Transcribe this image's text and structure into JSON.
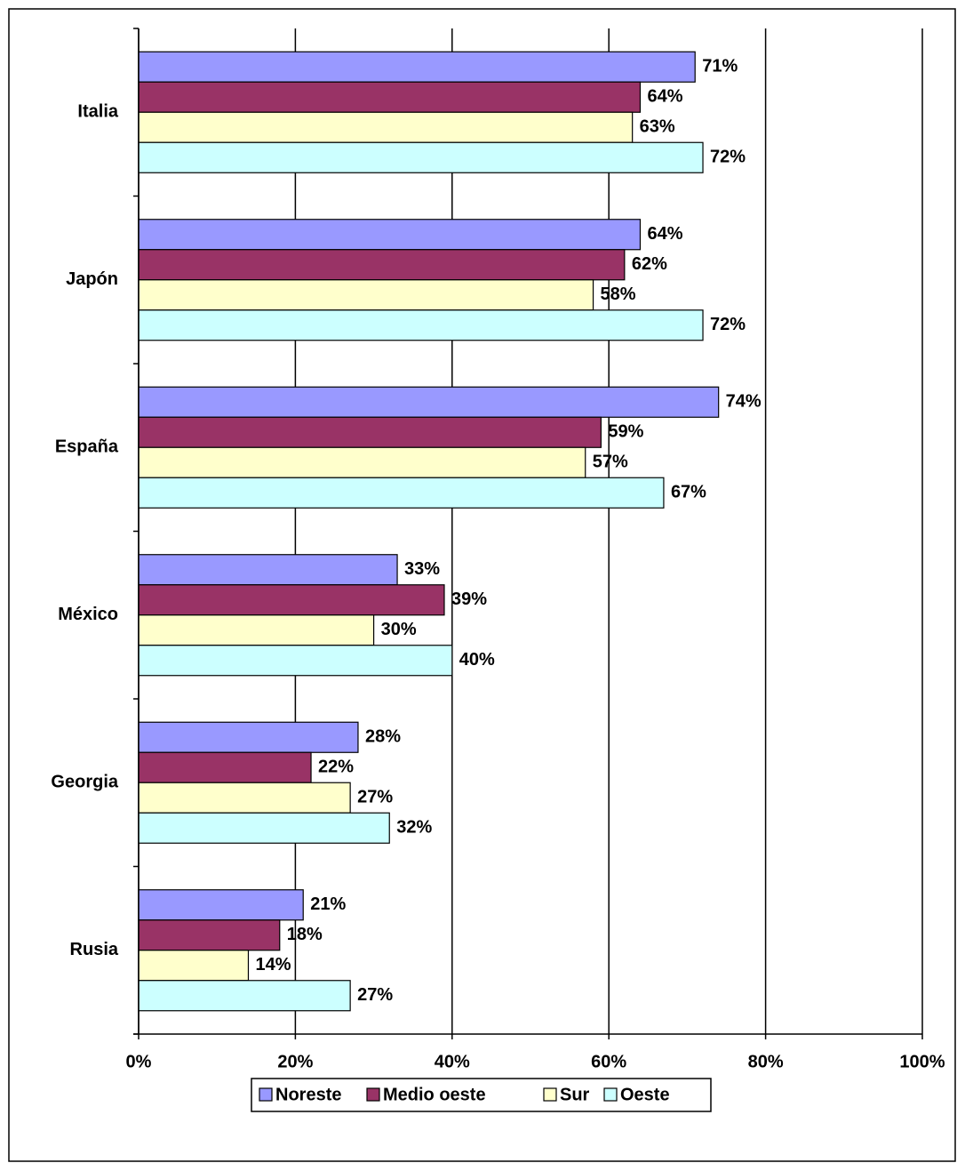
{
  "chart_data": {
    "type": "hbar",
    "categories": [
      "Italia",
      "Japón",
      "España",
      "México",
      "Georgia",
      "Rusia"
    ],
    "series": [
      {
        "name": "Noreste",
        "color": "#9999ff",
        "values": [
          71,
          64,
          74,
          33,
          28,
          21
        ],
        "value_labels": [
          "71%",
          "64%",
          "74%",
          "33%",
          "28%",
          "21%"
        ]
      },
      {
        "name": "Medio oeste",
        "color": "#993366",
        "values": [
          64,
          62,
          59,
          39,
          22,
          18
        ],
        "value_labels": [
          "64%",
          "62%",
          "59%",
          "39%",
          "22%",
          "18%"
        ]
      },
      {
        "name": "Sur",
        "color": "#ffffcc",
        "values": [
          63,
          58,
          57,
          30,
          27,
          14
        ],
        "value_labels": [
          "63%",
          "58%",
          "57%",
          "30%",
          "27%",
          "14%"
        ]
      },
      {
        "name": "Oeste",
        "color": "#ccffff",
        "values": [
          72,
          72,
          67,
          40,
          32,
          27
        ],
        "value_labels": [
          "72%",
          "72%",
          "67%",
          "40%",
          "32%",
          "27%"
        ]
      }
    ],
    "xlim": [
      0,
      100
    ],
    "xticks": [
      {
        "value": 0,
        "label": "0%"
      },
      {
        "value": 20,
        "label": "20%"
      },
      {
        "value": 40,
        "label": "40%"
      },
      {
        "value": 60,
        "label": "60%"
      },
      {
        "value": 80,
        "label": "80%"
      },
      {
        "value": 100,
        "label": "100%"
      }
    ],
    "grid": true,
    "legend": "bottom"
  }
}
